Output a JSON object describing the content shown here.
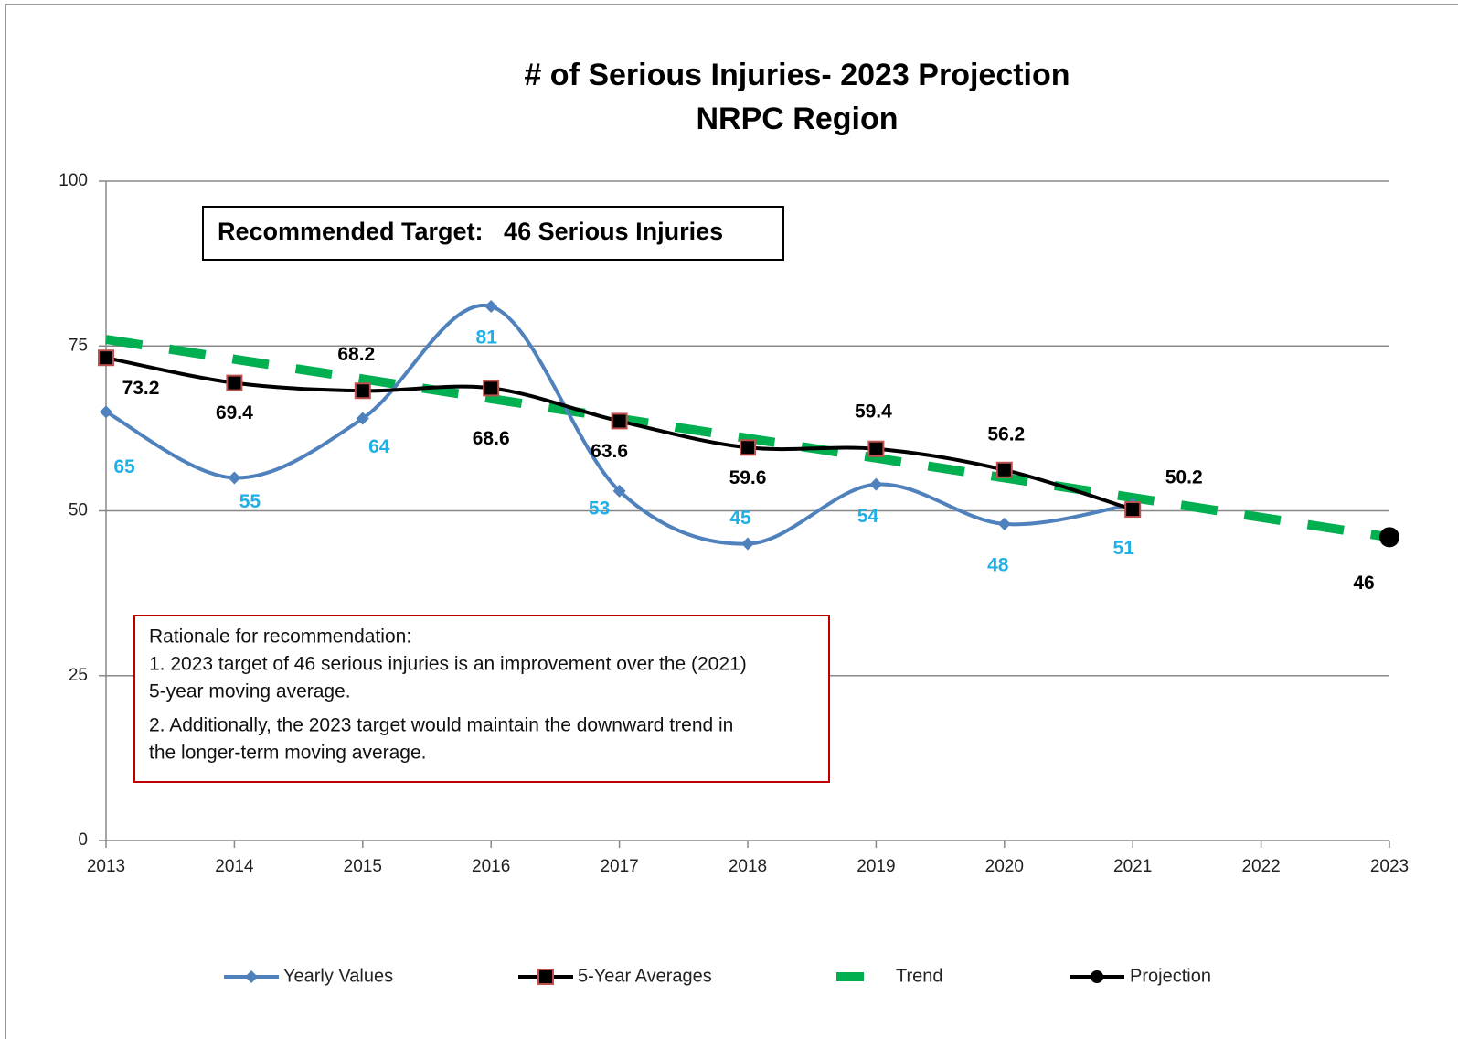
{
  "chart_data": {
    "type": "line",
    "title": "# of Serious Injuries- 2023 Projection",
    "subtitle": "NRPC Region",
    "x": [
      2013,
      2014,
      2015,
      2016,
      2017,
      2018,
      2019,
      2020,
      2021,
      2022,
      2023
    ],
    "xlim": [
      2013,
      2023
    ],
    "xticks": [
      2013,
      2014,
      2015,
      2016,
      2017,
      2018,
      2019,
      2020,
      2021,
      2022,
      2023
    ],
    "ylim": [
      0,
      100
    ],
    "yticks": [
      0,
      25,
      50,
      75,
      100
    ],
    "grid": true,
    "legend": "bottom",
    "series": [
      {
        "name": "Yearly Values",
        "color": "#4f81bd",
        "label_color": "#1fb0e8",
        "marker": "diamond",
        "smooth": true,
        "values": [
          65,
          55,
          64,
          81,
          53,
          45,
          54,
          48,
          51,
          null,
          null
        ]
      },
      {
        "name": "5-Year Averages",
        "color": "#000000",
        "label_color": "#000000",
        "marker": "square",
        "smooth": true,
        "values": [
          73.2,
          69.4,
          68.2,
          68.6,
          63.6,
          59.6,
          59.4,
          56.2,
          50.2,
          null,
          null
        ]
      },
      {
        "name": "Trend",
        "color": "#00b050",
        "dashed": true,
        "values": [
          76,
          73,
          70,
          67,
          64,
          61,
          58,
          55,
          52,
          49,
          46
        ]
      },
      {
        "name": "Projection",
        "color": "#000000",
        "label_color": "#000000",
        "marker": "circle",
        "values": [
          null,
          null,
          null,
          null,
          null,
          null,
          null,
          null,
          null,
          null,
          46
        ]
      }
    ],
    "annotations": {
      "target": "Recommended Target:   46 Serious Injuries",
      "rationale": [
        "Rationale for recommendation:",
        "1.  2023 target of 46 serious injuries is an improvement over the (2021)",
        "5-year moving average.",
        "2. Additionally, the 2023 target would maintain the downward trend in",
        "the longer-term moving average."
      ]
    }
  }
}
